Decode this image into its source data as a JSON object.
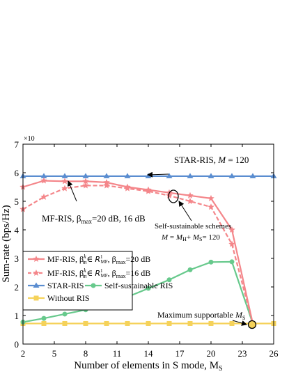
{
  "chart_data": {
    "type": "line",
    "xlabel": "Number of elements in S mode, M",
    "xlabel_sub": "S",
    "ylabel": "Sum-rate (bps/Hz)",
    "y_multiplier": "×10",
    "xlim": [
      2,
      26
    ],
    "ylim": [
      0,
      7
    ],
    "xticks": [
      2,
      5,
      8,
      11,
      14,
      17,
      20,
      23,
      26
    ],
    "yticks": [
      0,
      1,
      2,
      3,
      4,
      5,
      6,
      7
    ],
    "grid": false,
    "legend_position": "lower-left",
    "series": [
      {
        "name": "MF-RIS, β_m^k ∈ R_MF^1, β_max=20 dB",
        "color": "#F4868A",
        "dash": "solid",
        "marker": "star",
        "x": [
          2,
          4,
          6,
          8,
          10,
          12,
          14,
          16,
          18,
          20,
          22,
          24
        ],
        "y": [
          5.5,
          5.72,
          5.7,
          5.7,
          5.66,
          5.5,
          5.4,
          5.3,
          5.2,
          5.1,
          4.0,
          0.72
        ]
      },
      {
        "name": "MF-RIS, β_m^k ∈ R_MF^1, β_max=16 dB",
        "color": "#F4868A",
        "dash": "dashed",
        "marker": "star",
        "x": [
          2,
          4,
          6,
          8,
          10,
          12,
          14,
          16,
          18,
          20,
          22,
          24
        ],
        "y": [
          4.72,
          5.15,
          5.45,
          5.55,
          5.55,
          5.45,
          5.35,
          5.2,
          5.0,
          4.8,
          3.5,
          0.72
        ]
      },
      {
        "name": "STAR-RIS",
        "color": "#5A8DD0",
        "dash": "solid",
        "marker": "triangle",
        "x": [
          2,
          4,
          6,
          8,
          10,
          12,
          14,
          16,
          18,
          20,
          22,
          24,
          26
        ],
        "y": [
          5.88,
          5.88,
          5.88,
          5.88,
          5.88,
          5.88,
          5.88,
          5.88,
          5.88,
          5.88,
          5.88,
          5.88,
          5.88
        ]
      },
      {
        "name": "Self-sustainable RIS",
        "color": "#67C98C",
        "dash": "solid",
        "marker": "circle",
        "x": [
          2,
          4,
          6,
          8,
          10,
          12,
          14,
          16,
          18,
          20,
          22,
          24
        ],
        "y": [
          0.77,
          0.9,
          1.05,
          1.2,
          1.4,
          1.65,
          1.95,
          2.25,
          2.6,
          2.87,
          2.88,
          0.72
        ]
      },
      {
        "name": "Without RIS",
        "color": "#F5D25A",
        "dash": "solid",
        "marker": "square",
        "x": [
          2,
          4,
          6,
          8,
          10,
          12,
          14,
          16,
          18,
          20,
          22,
          24,
          26
        ],
        "y": [
          0.72,
          0.72,
          0.72,
          0.72,
          0.72,
          0.72,
          0.72,
          0.72,
          0.72,
          0.72,
          0.72,
          0.72,
          0.72
        ]
      }
    ],
    "legend": {
      "mf1": "MF-RIS, β",
      "mf1_sup": "k",
      "mf1_sub": "m",
      "mf1_mid": "∈ ",
      "mf1_set": "R",
      "mf1_set_sup": "1",
      "mf1_set_sub": "MF",
      "mf1_sep": ", β",
      "mf1_max_sub": "max",
      "mf1_end": "=20 dB",
      "mf2": "MF-RIS, β",
      "mf2_sup": "k",
      "mf2_sub": "m",
      "mf2_mid": "∈ ",
      "mf2_set": "R",
      "mf2_set_sup": "1",
      "mf2_set_sub": "MF",
      "mf2_sep": ", β",
      "mf2_max_sub": "max",
      "mf2_end": "=16 dB",
      "star": "STAR-RIS",
      "self": "Self-sustainable RIS",
      "without": "Without RIS"
    },
    "annotations": {
      "star_ris_a": "STAR-RIS, ",
      "star_ris_b": "M",
      "star_ris_c": " = 120",
      "mf_ris_a": "MF-RIS, β",
      "mf_ris_sub": "max",
      "mf_ris_b": "=20 dB, 16 dB",
      "self_line1": "Self-sustainable schemes",
      "self_a": "M",
      "self_b": " = ",
      "self_c": "M",
      "self_c_sub": "H",
      "self_d": "+ ",
      "self_e": "M",
      "self_e_sub": "S",
      "self_f": "= 120",
      "max_a": "Maximum supportable ",
      "max_b": "M",
      "max_sub": "S"
    }
  }
}
